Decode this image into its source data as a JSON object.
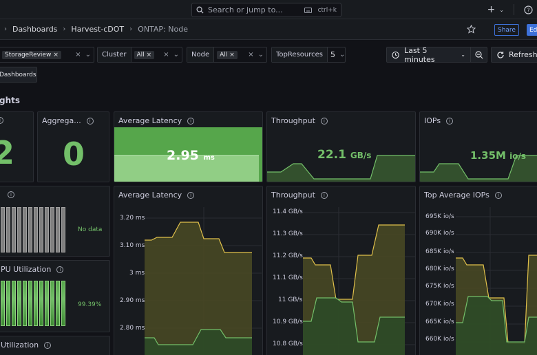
{
  "topbar": {
    "search_placeholder": "Search or jump to...",
    "search_shortcut": "ctrl+k"
  },
  "breadcrumbs": [
    "Dashboards",
    "Harvest-cDOT",
    "ONTAP: Node"
  ],
  "header_buttons": {
    "share": "Share",
    "edit": "Ed"
  },
  "variables": {
    "datacenter_value": "StorageReview",
    "cluster_label": "Cluster",
    "cluster_value": "All",
    "node_label": "Node",
    "node_value": "All",
    "topresources_label": "TopResources",
    "topresources_value": "5"
  },
  "timepicker": {
    "range": "Last 5 minutes"
  },
  "refresh_label": "Refresh",
  "dashboards_link": "Dashboards",
  "row_title": "ghts",
  "stat_panels": {
    "first_value": "2",
    "aggregates_title": "Aggrega...",
    "aggregates_value": "0",
    "latency_title": "Average Latency",
    "latency_value": "2.95",
    "latency_unit": "ms",
    "throughput_title": "Throughput",
    "throughput_value": "22.1",
    "throughput_unit": "GB/s",
    "iops_title": "IOPs",
    "iops_value": "1.35M",
    "iops_unit": "io/s"
  },
  "bargauge_panels": {
    "nodata_text": "No data",
    "cpu_title": "PU Utilization",
    "cpu_value": "99.39%",
    "bottom_title": "Utilization"
  },
  "timeseries": {
    "latency_title": "Average Latency",
    "latency_ticks": [
      "3.20 ms",
      "3.10 ms",
      "3 ms",
      "2.90 ms",
      "2.80 ms"
    ],
    "throughput_title": "Throughput",
    "throughput_ticks": [
      "11.4 GB/s",
      "11.3 GB/s",
      "11.2 GB/s",
      "11.1 GB/s",
      "11 GB/s",
      "10.9 GB/s",
      "10.8 GB/s"
    ],
    "iops_title": "Top Average IOPs",
    "iops_ticks": [
      "695K io/s",
      "690K io/s",
      "685K io/s",
      "680K io/s",
      "675K io/s",
      "670K io/s",
      "665K io/s",
      "660K io/s"
    ]
  },
  "colors": {
    "background": "#111217",
    "panel": "#181b1f",
    "green": "#73bf69",
    "yellow": "#e0c04b",
    "accent_blue": "#3d71d9"
  }
}
